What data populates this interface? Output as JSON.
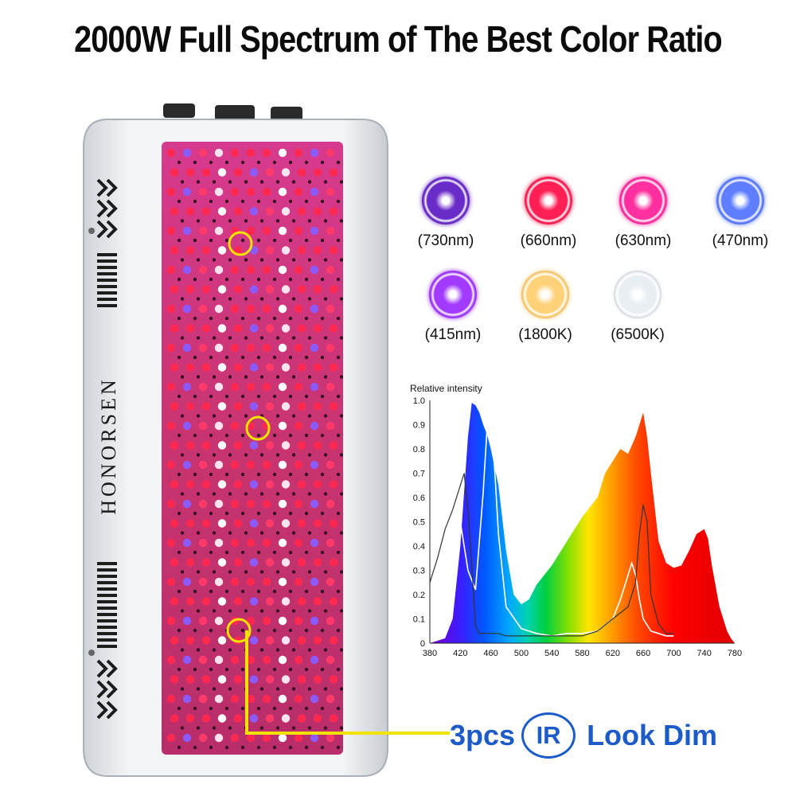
{
  "headline": "2000W Full Spectrum of The Best Color Ratio",
  "brand": "HONORSEN",
  "swatches": [
    {
      "label": "(730nm)",
      "color": "#6a2cc9"
    },
    {
      "label": "(660nm)",
      "color": "#ff1f55"
    },
    {
      "label": "(630nm)",
      "color": "#ff2fa0"
    },
    {
      "label": "(470nm)",
      "color": "#5e7dff"
    },
    {
      "label": "(415nm)",
      "color": "#a23bff"
    },
    {
      "label": "(1800K)",
      "color": "#ffd27a"
    },
    {
      "label": "(6500K)",
      "color": "#e9eef3"
    }
  ],
  "callout": {
    "prefix": "3pcs",
    "badge": "IR",
    "suffix": "Look Dim",
    "color": "#1c5bc8"
  },
  "chart_data": {
    "type": "area",
    "ylabel": "Relative intensity",
    "xlim": [
      380,
      780
    ],
    "ylim": [
      0,
      1.0
    ],
    "x_ticks": [
      380,
      420,
      460,
      500,
      540,
      580,
      620,
      660,
      700,
      740,
      780
    ],
    "y_ticks": [
      0,
      0.1,
      0.2,
      0.3,
      0.4,
      0.5,
      0.6,
      0.7,
      0.8,
      0.9,
      1.0
    ],
    "series": [
      {
        "x": [
          380,
          400,
          410,
          420,
          430,
          435,
          440,
          445,
          450,
          455,
          460,
          470,
          480,
          490,
          500,
          510,
          520,
          540,
          560,
          580,
          600,
          610,
          620,
          630,
          640,
          650,
          655,
          660,
          665,
          670,
          680,
          690,
          700,
          710,
          720,
          730,
          740,
          745,
          750,
          760,
          770,
          775,
          780
        ],
        "y": [
          0,
          0.02,
          0.1,
          0.4,
          0.85,
          0.99,
          0.98,
          0.95,
          0.9,
          0.86,
          0.8,
          0.65,
          0.38,
          0.2,
          0.16,
          0.18,
          0.24,
          0.32,
          0.42,
          0.52,
          0.6,
          0.7,
          0.75,
          0.8,
          0.78,
          0.85,
          0.9,
          0.95,
          0.85,
          0.7,
          0.42,
          0.33,
          0.31,
          0.32,
          0.38,
          0.45,
          0.47,
          0.43,
          0.32,
          0.15,
          0.05,
          0.02,
          0
        ]
      },
      {
        "x": [
          380,
          400,
          410,
          420,
          430,
          440,
          450,
          455,
          460,
          465,
          470,
          480,
          500,
          520,
          540,
          560,
          580,
          600,
          620,
          630,
          640,
          645,
          650,
          655,
          660,
          670,
          680,
          690,
          700
        ],
        "y": [
          0.05,
          0.2,
          0.45,
          0.5,
          0.3,
          0.22,
          0.62,
          0.88,
          0.9,
          0.72,
          0.45,
          0.15,
          0.06,
          0.04,
          0.03,
          0.04,
          0.04,
          0.05,
          0.1,
          0.18,
          0.28,
          0.33,
          0.28,
          0.18,
          0.1,
          0.05,
          0.04,
          0.03,
          0.03
        ]
      },
      {
        "x": [
          380,
          390,
          400,
          410,
          420,
          425,
          430,
          435,
          440,
          445,
          450,
          460,
          470,
          480,
          500,
          520,
          540,
          560,
          580,
          600,
          620,
          640,
          650,
          655,
          660,
          665,
          670,
          680,
          690,
          700
        ],
        "y": [
          0.25,
          0.35,
          0.47,
          0.55,
          0.65,
          0.7,
          0.55,
          0.32,
          0.07,
          0.04,
          0.04,
          0.04,
          0.04,
          0.03,
          0.03,
          0.03,
          0.03,
          0.03,
          0.03,
          0.05,
          0.1,
          0.15,
          0.25,
          0.45,
          0.57,
          0.5,
          0.2,
          0.08,
          0.04,
          0.04
        ]
      }
    ]
  }
}
